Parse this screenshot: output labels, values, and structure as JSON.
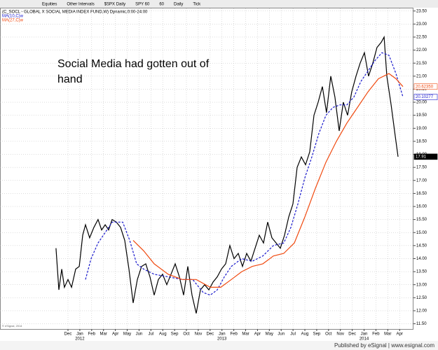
{
  "toolbar": [
    "Equities",
    "Other Intervals",
    "$SPX Daily",
    "SPY 60",
    "60",
    "Daily",
    "Tick"
  ],
  "footer": "Published by eSignal | www.esignal.com",
  "copyright": "© eSignal, 2014",
  "chart_data": {
    "type": "line",
    "title": "(C_SOCL - GLOBAL X SOCIAL MEDIA INDEX FUND,W) Dynamic,0:00-24:00",
    "annotation": [
      "Social Media had gotten out of",
      "hand"
    ],
    "xlim": [
      -5.74,
      29.17
    ],
    "xticks": [
      {
        "value": 0,
        "label": "Dec"
      },
      {
        "value": 1,
        "label": "Jan"
      },
      {
        "value": 2,
        "label": "Feb"
      },
      {
        "value": 3,
        "label": "Mar"
      },
      {
        "value": 4,
        "label": "Apr"
      },
      {
        "value": 5,
        "label": "May"
      },
      {
        "value": 6,
        "label": "Jun"
      },
      {
        "value": 7,
        "label": "Jul"
      },
      {
        "value": 8,
        "label": "Aug"
      },
      {
        "value": 9,
        "label": "Sep"
      },
      {
        "value": 10,
        "label": "Oct"
      },
      {
        "value": 11,
        "label": "Nov"
      },
      {
        "value": 12,
        "label": "Dec"
      },
      {
        "value": 13,
        "label": "Jan"
      },
      {
        "value": 14,
        "label": "Feb"
      },
      {
        "value": 15,
        "label": "Mar"
      },
      {
        "value": 16,
        "label": "Apr"
      },
      {
        "value": 17,
        "label": "May"
      },
      {
        "value": 18,
        "label": "Jun"
      },
      {
        "value": 19,
        "label": "Jul"
      },
      {
        "value": 20,
        "label": "Aug"
      },
      {
        "value": 21,
        "label": "Sep"
      },
      {
        "value": 22,
        "label": "Oct"
      },
      {
        "value": 23,
        "label": "Nov"
      },
      {
        "value": 24,
        "label": "Dec"
      },
      {
        "value": 25,
        "label": "Jan"
      },
      {
        "value": 26,
        "label": "Feb"
      },
      {
        "value": 27,
        "label": "Mar"
      },
      {
        "value": 28,
        "label": "Apr"
      }
    ],
    "year_labels": [
      {
        "value": 1,
        "label": "2012"
      },
      {
        "value": 13,
        "label": "2013"
      },
      {
        "value": 25,
        "label": "2014"
      }
    ],
    "ylim": [
      11.3,
      23.6
    ],
    "yticks": [
      {
        "value": 11.5,
        "label": "11.50"
      },
      {
        "value": 12,
        "label": "12.00"
      },
      {
        "value": 12.5,
        "label": "12.50"
      },
      {
        "value": 13,
        "label": "13.00"
      },
      {
        "value": 13.5,
        "label": "13.50"
      },
      {
        "value": 14,
        "label": "14.00"
      },
      {
        "value": 14.5,
        "label": "14.50"
      },
      {
        "value": 15,
        "label": "15.00"
      },
      {
        "value": 15.5,
        "label": "15.50"
      },
      {
        "value": 16,
        "label": "16.00"
      },
      {
        "value": 16.5,
        "label": "16.50"
      },
      {
        "value": 17,
        "label": "17.00"
      },
      {
        "value": 17.5,
        "label": "17.50"
      },
      {
        "value": 18,
        "label": "18.00"
      },
      {
        "value": 18.5,
        "label": "18.50"
      },
      {
        "value": 19,
        "label": "19.00"
      },
      {
        "value": 19.5,
        "label": "19.50"
      },
      {
        "value": 20,
        "label": "20.00"
      },
      {
        "value": 20.5,
        "label": "20.50"
      },
      {
        "value": 21,
        "label": "21.00"
      },
      {
        "value": 21.5,
        "label": "21.50"
      },
      {
        "value": 22,
        "label": "22.00"
      },
      {
        "value": 22.5,
        "label": "22.50"
      },
      {
        "value": 23,
        "label": "23.00"
      },
      {
        "value": 23.5,
        "label": "23.50"
      }
    ],
    "grid": true,
    "series": [
      {
        "name": "SOCL",
        "color": "#000000",
        "dash": false,
        "flag": "17.91",
        "legend": false,
        "x": [
          -1.01,
          -0.77,
          -0.53,
          -0.3,
          0,
          0.3,
          0.65,
          0.95,
          1.24,
          1.48,
          1.83,
          2.19,
          2.54,
          2.84,
          3.14,
          3.43,
          3.73,
          4.08,
          4.44,
          4.79,
          5.15,
          5.5,
          5.86,
          6.21,
          6.57,
          6.92,
          7.28,
          7.63,
          7.99,
          8.34,
          8.7,
          9.05,
          9.41,
          9.76,
          10.12,
          10.47,
          10.83,
          11.18,
          11.54,
          11.89,
          12.25,
          12.6,
          12.96,
          13.31,
          13.67,
          14.02,
          14.38,
          14.73,
          15.09,
          15.44,
          15.8,
          16.15,
          16.51,
          16.86,
          17.22,
          17.57,
          17.93,
          18.28,
          18.64,
          18.99,
          19.35,
          19.7,
          20.06,
          20.41,
          20.77,
          21.12,
          21.48,
          21.83,
          22.19,
          22.54,
          22.9,
          23.25,
          23.61,
          23.96,
          24.32,
          24.67,
          25.03,
          25.38,
          25.74,
          26.09,
          26.45,
          26.69,
          26.92,
          27.28,
          27.63,
          27.87
        ],
        "values": [
          14.4,
          12.8,
          13.6,
          12.9,
          13.2,
          12.9,
          13.6,
          13.7,
          14.9,
          15.3,
          14.8,
          15.2,
          15.5,
          15.1,
          15.3,
          15.1,
          15.5,
          15.4,
          15.2,
          14.7,
          13.6,
          12.3,
          13.2,
          13.7,
          13.8,
          13.3,
          12.6,
          13.2,
          13.4,
          13.0,
          13.4,
          13.8,
          13.3,
          12.6,
          13.7,
          12.6,
          11.9,
          12.8,
          13.0,
          12.8,
          13.1,
          13.3,
          13.6,
          13.8,
          14.5,
          14.0,
          14.2,
          13.7,
          14.2,
          13.9,
          14.4,
          14.9,
          14.6,
          15.4,
          14.8,
          14.6,
          14.4,
          14.9,
          15.6,
          16.1,
          17.5,
          17.9,
          17.6,
          18.1,
          19.5,
          20.0,
          20.6,
          19.6,
          21.0,
          20.2,
          18.9,
          20.0,
          19.5,
          20.4,
          21.0,
          21.5,
          21.9,
          21.0,
          21.5,
          22.1,
          22.3,
          22.5,
          21.0,
          19.9,
          18.7,
          17.91
        ]
      },
      {
        "name": "MA(10,C)w",
        "color": "#1a1acc",
        "dash": true,
        "flag": "20.10277",
        "legend": true,
        "x": [
          1.48,
          1.95,
          2.54,
          3.14,
          3.73,
          4.62,
          5.21,
          5.8,
          6.39,
          7.28,
          8.46,
          9.64,
          10.53,
          11.42,
          12.01,
          12.6,
          13.2,
          13.79,
          14.67,
          15.56,
          16.45,
          17.34,
          18.22,
          18.82,
          19.41,
          20.0,
          20.59,
          21.18,
          21.78,
          22.37,
          22.96,
          23.55,
          24.14,
          24.73,
          25.33,
          25.92,
          26.51,
          27.1,
          27.69,
          28.28
        ],
        "values": [
          13.2,
          14.0,
          14.6,
          15.0,
          15.4,
          15.4,
          14.7,
          13.8,
          13.6,
          13.4,
          13.3,
          13.2,
          13.2,
          12.7,
          12.6,
          12.8,
          13.3,
          13.7,
          14.0,
          13.9,
          14.1,
          14.5,
          14.6,
          15.2,
          16.1,
          17.1,
          17.9,
          18.8,
          19.5,
          19.8,
          19.9,
          19.9,
          20.2,
          20.8,
          21.2,
          21.6,
          21.9,
          21.8,
          21.1,
          20.2
        ]
      },
      {
        "name": "MA(27,C)w",
        "color": "#f04a10",
        "dash": false,
        "flag": "20.62350",
        "legend": true,
        "x": [
          5.5,
          6.39,
          7.28,
          8.46,
          9.64,
          10.83,
          12.01,
          12.9,
          13.79,
          14.67,
          15.56,
          16.45,
          17.34,
          18.22,
          19.11,
          20.0,
          20.89,
          21.78,
          22.66,
          23.55,
          24.44,
          25.33,
          26.21,
          27.1,
          27.69,
          28.28
        ],
        "values": [
          14.7,
          14.3,
          13.8,
          13.4,
          13.2,
          13.2,
          12.9,
          12.9,
          13.2,
          13.5,
          13.7,
          13.8,
          14.1,
          14.2,
          14.6,
          15.6,
          16.7,
          17.7,
          18.5,
          19.2,
          19.8,
          20.4,
          20.9,
          21.1,
          20.9,
          20.6
        ]
      }
    ]
  }
}
